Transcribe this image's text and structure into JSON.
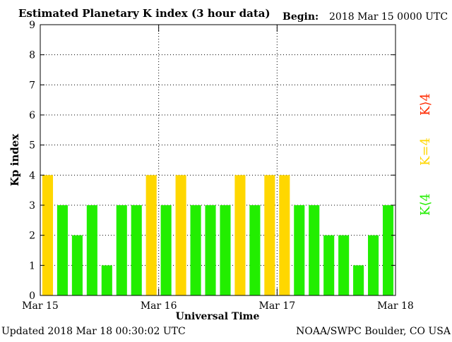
{
  "header": {
    "title": "Estimated Planetary K index (3 hour data)",
    "begin_label": "Begin:",
    "begin_value": "2018 Mar 15 0000 UTC"
  },
  "footer": {
    "updated": "Updated 2018 Mar 18 00:30:02 UTC",
    "source": "NOAA/SWPC Boulder, CO USA"
  },
  "legend": {
    "high": "K⟩4",
    "equal": "K=4",
    "low": "K⟨4",
    "colors": {
      "high": "#ff2a00",
      "equal": "#ffd700",
      "low": "#22ee00"
    }
  },
  "chart_data": {
    "type": "bar",
    "title": "Estimated Planetary K index (3 hour data)",
    "xlabel": "Universal Time",
    "ylabel": "Kp index",
    "ylim": [
      0,
      9
    ],
    "yticks": [
      "0",
      "1",
      "2",
      "3",
      "4",
      "5",
      "6",
      "7",
      "8",
      "9"
    ],
    "xticks": [
      "Mar 15",
      "Mar 16",
      "Mar 17",
      "Mar 18"
    ],
    "grid": true,
    "values": [
      4,
      3,
      2,
      3,
      1,
      3,
      3,
      4,
      3,
      4,
      3,
      3,
      3,
      4,
      3,
      4,
      4,
      3,
      3,
      2,
      2,
      1,
      2,
      3
    ],
    "threshold": 4,
    "colors": {
      "above": "#ff2a00",
      "equal": "#ffd700",
      "below": "#22ee00"
    }
  }
}
